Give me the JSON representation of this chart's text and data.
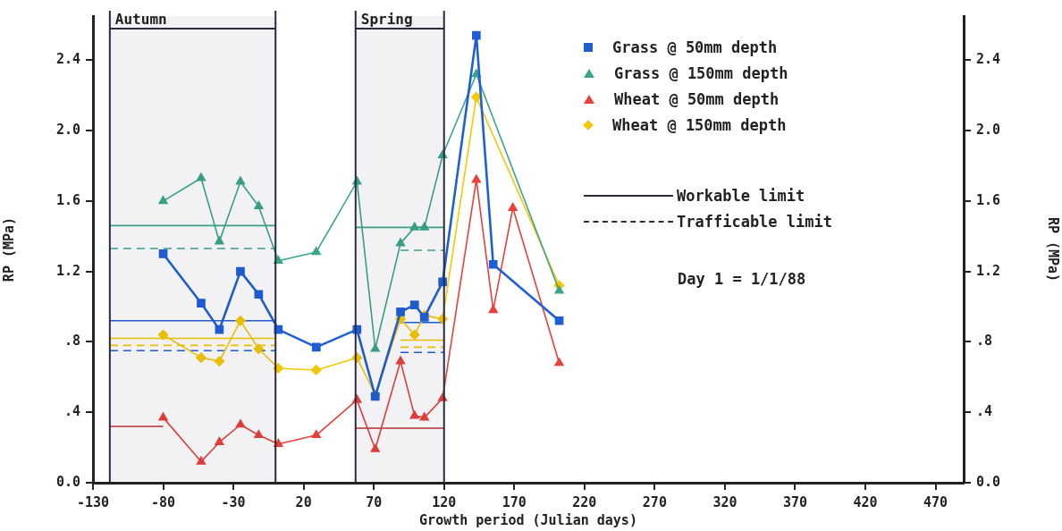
{
  "chart_data": {
    "type": "line",
    "xlabel": "Growth period (Julian days)",
    "ylabel": "RP (MPa)",
    "y2label": "RP (MPa)",
    "xlim": [
      -130,
      490
    ],
    "xticks": [
      -130,
      -80,
      -30,
      20,
      70,
      120,
      170,
      220,
      270,
      320,
      370,
      420,
      470
    ],
    "ylim": [
      0,
      2.65
    ],
    "yticks": [
      {
        "value": 0,
        "label": "0.0"
      },
      {
        "value": 0.4,
        "label": ".4"
      },
      {
        "value": 0.8,
        "label": ".8"
      },
      {
        "value": 1.2,
        "label": "1.2"
      },
      {
        "value": 1.6,
        "label": "1.6"
      },
      {
        "value": 2.0,
        "label": "2.0"
      },
      {
        "value": 2.4,
        "label": "2.4"
      }
    ],
    "y2lim": [
      0,
      2.65
    ],
    "y2ticks": [
      {
        "value": 0,
        "label": "0.0"
      },
      {
        "value": 0.4,
        "label": ".4"
      },
      {
        "value": 0.8,
        "label": ".8"
      },
      {
        "value": 1.2,
        "label": "1.2"
      },
      {
        "value": 1.6,
        "label": "1.6"
      },
      {
        "value": 2.0,
        "label": "2.0"
      },
      {
        "value": 2.4,
        "label": "2.4"
      }
    ],
    "grid": false,
    "legend": "top right",
    "bands": [
      {
        "axis": "x",
        "from": -118,
        "to": 0,
        "label": "Autumn",
        "color": "#2a2a40"
      },
      {
        "axis": "x",
        "from": 57,
        "to": 120,
        "label": "Spring",
        "color": "#2a2a40"
      }
    ],
    "annotations": [
      "Day 1 = 1/1/88"
    ],
    "series": [
      {
        "name": "Grass @ 50mm depth",
        "color": "#1f5fd6",
        "marker": "square",
        "line_style": "solid",
        "x": [
          -80,
          -53,
          -40,
          -25,
          -12,
          2,
          29,
          58,
          71,
          89,
          99,
          106,
          119,
          143,
          155,
          202
        ],
        "values": [
          1.3,
          1.02,
          0.87,
          1.2,
          1.07,
          0.87,
          0.77,
          0.87,
          0.49,
          0.97,
          1.01,
          0.94,
          1.14,
          2.54,
          1.24,
          0.92
        ]
      },
      {
        "name": "Grass @ 150mm depth",
        "color": "#3aa58a",
        "marker": "triangle",
        "line_style": "solid",
        "x": [
          -80,
          -53,
          -40,
          -25,
          -12,
          2,
          29,
          58,
          71,
          89,
          99,
          106,
          119,
          143,
          202
        ],
        "values": [
          1.6,
          1.73,
          1.37,
          1.71,
          1.57,
          1.26,
          1.31,
          1.71,
          0.76,
          1.36,
          1.45,
          1.45,
          1.86,
          2.32,
          1.09
        ]
      },
      {
        "name": "Wheat @ 50mm depth",
        "color": "#e8403a",
        "marker": "triangle",
        "line_style": "solid",
        "x": [
          -80,
          -53,
          -40,
          -25,
          -12,
          2,
          29,
          58,
          71,
          89,
          99,
          106,
          119,
          143,
          155,
          169,
          202
        ],
        "values": [
          0.37,
          0.12,
          0.23,
          0.33,
          0.27,
          0.22,
          0.27,
          0.47,
          0.19,
          0.69,
          0.38,
          0.37,
          0.48,
          1.72,
          0.98,
          1.56,
          0.68
        ]
      },
      {
        "name": "Wheat @ 150mm depth",
        "color": "#f5c800",
        "marker": "diamond",
        "line_style": "solid",
        "x": [
          -80,
          -53,
          -40,
          -25,
          -12,
          2,
          29,
          58,
          71,
          89,
          99,
          106,
          119,
          143,
          202
        ],
        "values": [
          0.84,
          0.71,
          0.69,
          0.92,
          0.76,
          0.65,
          0.64,
          0.71,
          0.5,
          0.93,
          0.84,
          0.95,
          0.93,
          2.19,
          1.12
        ]
      },
      {
        "name": "Workable limit",
        "color": "#2a2a40",
        "marker": "none",
        "line_style": "solid"
      },
      {
        "name": "Trafficable limit",
        "color": "#2a2a40",
        "marker": "none",
        "line_style": "dashed"
      },
      {
        "color": "#3aa58a",
        "marker": "none",
        "line_style": "solid",
        "x": [
          -118,
          0
        ],
        "values": [
          1.46,
          1.46
        ]
      },
      {
        "color": "#3aa58a",
        "marker": "none",
        "line_style": "dashed",
        "x": [
          -118,
          0
        ],
        "values": [
          1.33,
          1.33
        ]
      },
      {
        "color": "#1f5fd6",
        "marker": "none",
        "line_style": "solid",
        "x": [
          -118,
          0
        ],
        "values": [
          0.92,
          0.92
        ]
      },
      {
        "color": "#1f5fd6",
        "marker": "none",
        "line_style": "dashed",
        "x": [
          -118,
          0
        ],
        "values": [
          0.75,
          0.75
        ]
      },
      {
        "color": "#f5c800",
        "marker": "none",
        "line_style": "solid",
        "x": [
          -118,
          0
        ],
        "values": [
          0.82,
          0.82
        ]
      },
      {
        "color": "#f5c800",
        "marker": "none",
        "line_style": "dashed",
        "x": [
          -118,
          0
        ],
        "values": [
          0.78,
          0.78
        ]
      },
      {
        "color": "#c03030",
        "marker": "none",
        "line_style": "solid",
        "x": [
          -118,
          -80
        ],
        "values": [
          0.32,
          0.32
        ]
      },
      {
        "color": "#3aa58a",
        "marker": "none",
        "line_style": "solid",
        "x": [
          57,
          120
        ],
        "values": [
          1.45,
          1.45
        ]
      },
      {
        "color": "#3aa58a",
        "marker": "none",
        "line_style": "dashed",
        "x": [
          89,
          120
        ],
        "values": [
          1.32,
          1.32
        ]
      },
      {
        "color": "#1f5fd6",
        "marker": "none",
        "line_style": "solid",
        "x": [
          89,
          120
        ],
        "values": [
          0.91,
          0.91
        ]
      },
      {
        "color": "#1f5fd6",
        "marker": "none",
        "line_style": "dashed",
        "x": [
          89,
          120
        ],
        "values": [
          0.74,
          0.74
        ]
      },
      {
        "color": "#f5c800",
        "marker": "none",
        "line_style": "solid",
        "x": [
          89,
          120
        ],
        "values": [
          0.81,
          0.81
        ]
      },
      {
        "color": "#f5c800",
        "marker": "none",
        "line_style": "dashed",
        "x": [
          89,
          120
        ],
        "values": [
          0.77,
          0.77
        ]
      },
      {
        "color": "#c03030",
        "marker": "none",
        "line_style": "solid",
        "x": [
          57,
          120
        ],
        "values": [
          0.31,
          0.31
        ]
      }
    ]
  }
}
